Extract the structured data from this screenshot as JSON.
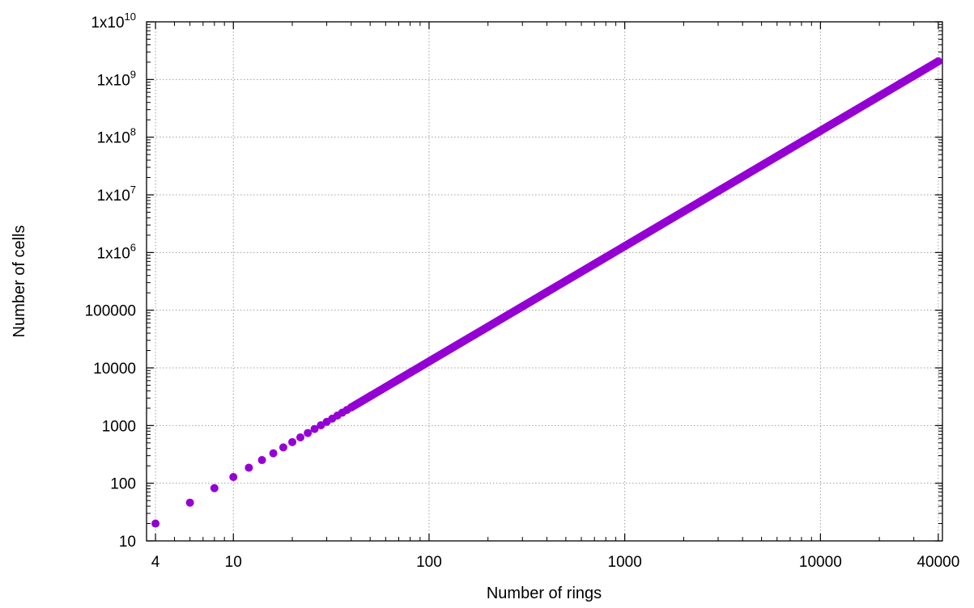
{
  "chart_data": {
    "type": "scatter",
    "xlabel": "Number of rings",
    "ylabel": "Number of cells",
    "x_scale": "log",
    "y_scale": "log",
    "xlim": [
      3.6,
      42000
    ],
    "ylim": [
      10,
      10000000000
    ],
    "grid": true,
    "marker_color": "#9400d3",
    "x_ticks": [
      {
        "value": 4,
        "label": "4"
      },
      {
        "value": 10,
        "label": "10"
      },
      {
        "value": 100,
        "label": "100"
      },
      {
        "value": 1000,
        "label": "1000"
      },
      {
        "value": 10000,
        "label": "10000"
      },
      {
        "value": 40000,
        "label": "40000"
      }
    ],
    "y_ticks": [
      {
        "value": 10,
        "label": "10"
      },
      {
        "value": 100,
        "label": "100"
      },
      {
        "value": 1000,
        "label": "1000"
      },
      {
        "value": 10000,
        "label": "10000"
      },
      {
        "value": 100000,
        "label": "100000"
      },
      {
        "value": 1000000,
        "label": "1x10",
        "exp": "6"
      },
      {
        "value": 10000000,
        "label": "1x10",
        "exp": "7"
      },
      {
        "value": 100000000,
        "label": "1x10",
        "exp": "8"
      },
      {
        "value": 1000000000,
        "label": "1x10",
        "exp": "9"
      },
      {
        "value": 10000000000,
        "label": "1x10",
        "exp": "10"
      }
    ],
    "series": [
      {
        "x": [
          4,
          6,
          8,
          10,
          12,
          14,
          16,
          18,
          20,
          22,
          24,
          26,
          28,
          30,
          32,
          34,
          36,
          38,
          40,
          50,
          60,
          70,
          80,
          100,
          150,
          200,
          300,
          400,
          500,
          700,
          1000,
          1500,
          2000,
          3000,
          5000,
          7000,
          10000,
          15000,
          20000,
          25000,
          30000,
          35000,
          40000
        ],
        "y": [
          20,
          46,
          82,
          128,
          186,
          252,
          330,
          418,
          516,
          624,
          742,
          872,
          1012,
          1160,
          1320,
          1490,
          1672,
          1862,
          2064,
          3226,
          4646,
          6322,
          8260,
          12904,
          29040,
          51620,
          116150,
          206500,
          322630,
          632400,
          1290600,
          2904000,
          5162000,
          11615000,
          32263000,
          63236000,
          129050000,
          290370000,
          516200000,
          806560000,
          1161400000,
          1580800000,
          2064800000
        ]
      }
    ]
  }
}
